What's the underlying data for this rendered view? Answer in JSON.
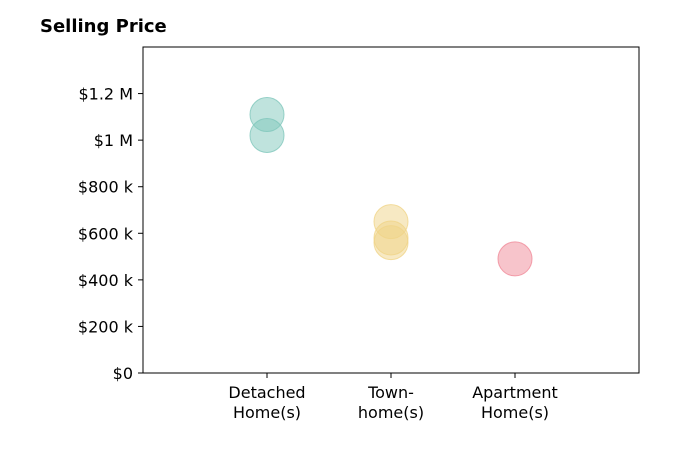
{
  "chart_data": {
    "type": "scatter",
    "title": "Selling Price",
    "xlabel": "",
    "ylabel": "",
    "categories": [
      [
        "Detached",
        "Home(s)"
      ],
      [
        "Town-",
        "home(s)"
      ],
      [
        "Apartment",
        "Home(s)"
      ]
    ],
    "ylim": [
      0,
      1400000
    ],
    "yticks": [
      0,
      200000,
      400000,
      600000,
      800000,
      1000000,
      1200000
    ],
    "ytick_labels": [
      "$0",
      "$200 k",
      "$400 k",
      "$600 k",
      "$800 k",
      "$1 M",
      "$1.2 M"
    ],
    "grid": false,
    "series": [
      {
        "category_index": 0,
        "color": "#7fc7bb",
        "values": [
          1110000,
          1020000
        ]
      },
      {
        "category_index": 1,
        "color": "#f0d488",
        "values": [
          650000,
          580000,
          560000
        ]
      },
      {
        "category_index": 2,
        "color": "#f08a98",
        "values": [
          490000
        ]
      }
    ]
  }
}
